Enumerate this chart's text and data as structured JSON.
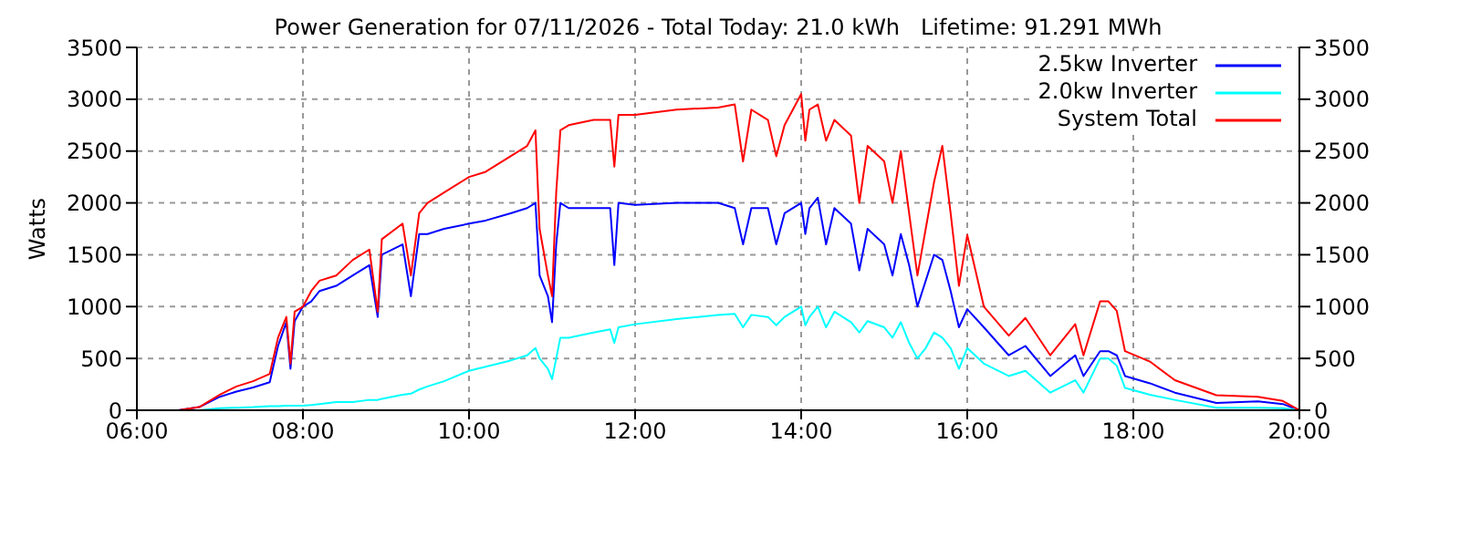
{
  "chart_data": {
    "type": "line",
    "title": "Power Generation for 07/11/2026 - Total Today: 21.0 kWh   Lifetime: 91.291 MWh",
    "ylabel": "Watts",
    "x": [
      6.5,
      6.75,
      7.0,
      7.2,
      7.4,
      7.6,
      7.7,
      7.8,
      7.85,
      7.9,
      8.0,
      8.1,
      8.2,
      8.4,
      8.6,
      8.8,
      8.9,
      8.95,
      9.2,
      9.3,
      9.4,
      9.5,
      9.7,
      10.0,
      10.2,
      10.5,
      10.7,
      10.8,
      10.85,
      10.95,
      11.0,
      11.05,
      11.1,
      11.2,
      11.5,
      11.7,
      11.75,
      11.8,
      12.0,
      12.5,
      13.0,
      13.2,
      13.3,
      13.4,
      13.6,
      13.7,
      13.8,
      14.0,
      14.05,
      14.1,
      14.2,
      14.3,
      14.4,
      14.6,
      14.7,
      14.8,
      15.0,
      15.1,
      15.2,
      15.3,
      15.4,
      15.5,
      15.6,
      15.7,
      15.8,
      15.9,
      16.0,
      16.2,
      16.5,
      16.7,
      17.0,
      17.3,
      17.4,
      17.6,
      17.7,
      17.8,
      17.9,
      18.2,
      18.5,
      19.0,
      19.5,
      19.8,
      20.0
    ],
    "series": [
      {
        "name": "2.5kw Inverter",
        "color": "#0000ff",
        "values": [
          0,
          30,
          130,
          180,
          220,
          270,
          620,
          850,
          400,
          860,
          1000,
          1050,
          1150,
          1200,
          1300,
          1400,
          900,
          1500,
          1600,
          1100,
          1700,
          1700,
          1750,
          1800,
          1830,
          1900,
          1950,
          2000,
          1300,
          1100,
          850,
          1600,
          2000,
          1950,
          1950,
          1950,
          1400,
          2000,
          1980,
          2000,
          2000,
          1950,
          1600,
          1950,
          1950,
          1600,
          1900,
          2000,
          1700,
          1950,
          2050,
          1600,
          1950,
          1800,
          1350,
          1750,
          1600,
          1300,
          1700,
          1400,
          1000,
          1250,
          1500,
          1450,
          1150,
          800,
          975,
          800,
          530,
          620,
          330,
          530,
          330,
          570,
          570,
          530,
          330,
          260,
          170,
          70,
          85,
          60,
          0
        ]
      },
      {
        "name": "2.0kw Inverter",
        "color": "#00ffff",
        "values": [
          0,
          0,
          20,
          25,
          30,
          40,
          40,
          45,
          45,
          45,
          45,
          50,
          60,
          80,
          80,
          100,
          100,
          110,
          150,
          160,
          200,
          230,
          280,
          380,
          420,
          480,
          530,
          600,
          500,
          400,
          300,
          500,
          700,
          700,
          750,
          780,
          650,
          800,
          830,
          880,
          920,
          930,
          800,
          920,
          900,
          820,
          900,
          1000,
          820,
          900,
          1000,
          800,
          950,
          850,
          750,
          860,
          800,
          700,
          850,
          650,
          500,
          600,
          750,
          700,
          600,
          400,
          600,
          450,
          330,
          380,
          170,
          290,
          170,
          500,
          500,
          430,
          215,
          150,
          100,
          25,
          25,
          20,
          0
        ]
      },
      {
        "name": "System Total",
        "color": "#ff0000",
        "values": [
          0,
          30,
          150,
          230,
          280,
          350,
          700,
          900,
          450,
          950,
          1000,
          1150,
          1250,
          1300,
          1450,
          1550,
          950,
          1650,
          1800,
          1300,
          1900,
          2000,
          2100,
          2250,
          2300,
          2450,
          2550,
          2700,
          1750,
          1300,
          1100,
          2100,
          2700,
          2750,
          2800,
          2800,
          2350,
          2850,
          2850,
          2900,
          2920,
          2950,
          2400,
          2900,
          2800,
          2450,
          2750,
          3050,
          2600,
          2900,
          2950,
          2600,
          2800,
          2650,
          2000,
          2550,
          2400,
          2000,
          2500,
          1900,
          1300,
          1750,
          2200,
          2550,
          1900,
          1200,
          1690,
          1000,
          720,
          890,
          530,
          830,
          530,
          1050,
          1050,
          960,
          570,
          470,
          290,
          145,
          130,
          90,
          0
        ]
      }
    ],
    "xlim": [
      6,
      20
    ],
    "xticks": [
      {
        "value": 6,
        "label": "06:00"
      },
      {
        "value": 8,
        "label": "08:00"
      },
      {
        "value": 10,
        "label": "10:00"
      },
      {
        "value": 12,
        "label": "12:00"
      },
      {
        "value": 14,
        "label": "14:00"
      },
      {
        "value": 16,
        "label": "16:00"
      },
      {
        "value": 18,
        "label": "18:00"
      },
      {
        "value": 20,
        "label": "20:00"
      }
    ],
    "ylim": [
      0,
      3500
    ],
    "yticks": [
      0,
      500,
      1000,
      1500,
      2000,
      2500,
      3000,
      3500
    ],
    "y2lim": [
      0,
      3500
    ],
    "y2ticks": [
      0,
      500,
      1000,
      1500,
      2000,
      2500,
      3000,
      3500
    ],
    "grid": true,
    "legend": "top right"
  }
}
